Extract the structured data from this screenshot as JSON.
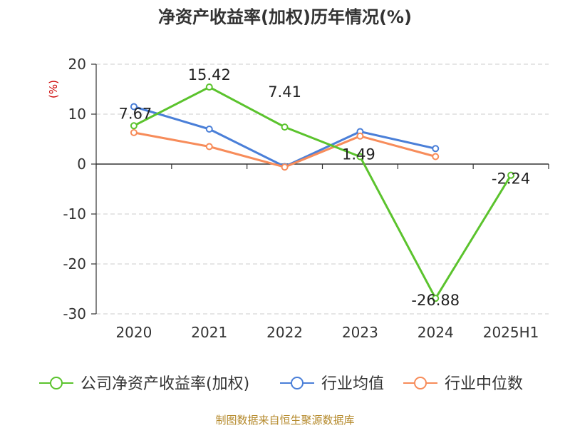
{
  "chart_data": {
    "type": "line",
    "title": "净资产收益率(加权)历年情况(%)",
    "ylabel": "(%)",
    "xlabel": "",
    "categories": [
      "2020",
      "2021",
      "2022",
      "2023",
      "2024",
      "2025H1"
    ],
    "ylim": [
      -30,
      20
    ],
    "yticks": [
      20,
      10,
      0,
      -10,
      -20,
      -30
    ],
    "grid": "horizontal-dashed",
    "legend_position": "bottom",
    "series": [
      {
        "name": "公司净资产收益率(加权)",
        "color": "#5bc32d",
        "values": [
          7.67,
          15.42,
          7.41,
          1.49,
          -26.88,
          -2.24
        ],
        "labels": [
          "7.67",
          "15.42",
          "7.41",
          "1.49",
          "-26.88",
          "-2.24"
        ]
      },
      {
        "name": "行业均值",
        "color": "#4a7fd8",
        "values": [
          11.5,
          7.0,
          -0.5,
          6.5,
          3.1,
          null
        ]
      },
      {
        "name": "行业中位数",
        "color": "#f78c5a",
        "values": [
          6.3,
          3.5,
          -0.6,
          5.6,
          1.5,
          null
        ]
      }
    ]
  },
  "footer": {
    "source": "制图数据来自恒生聚源数据库"
  }
}
